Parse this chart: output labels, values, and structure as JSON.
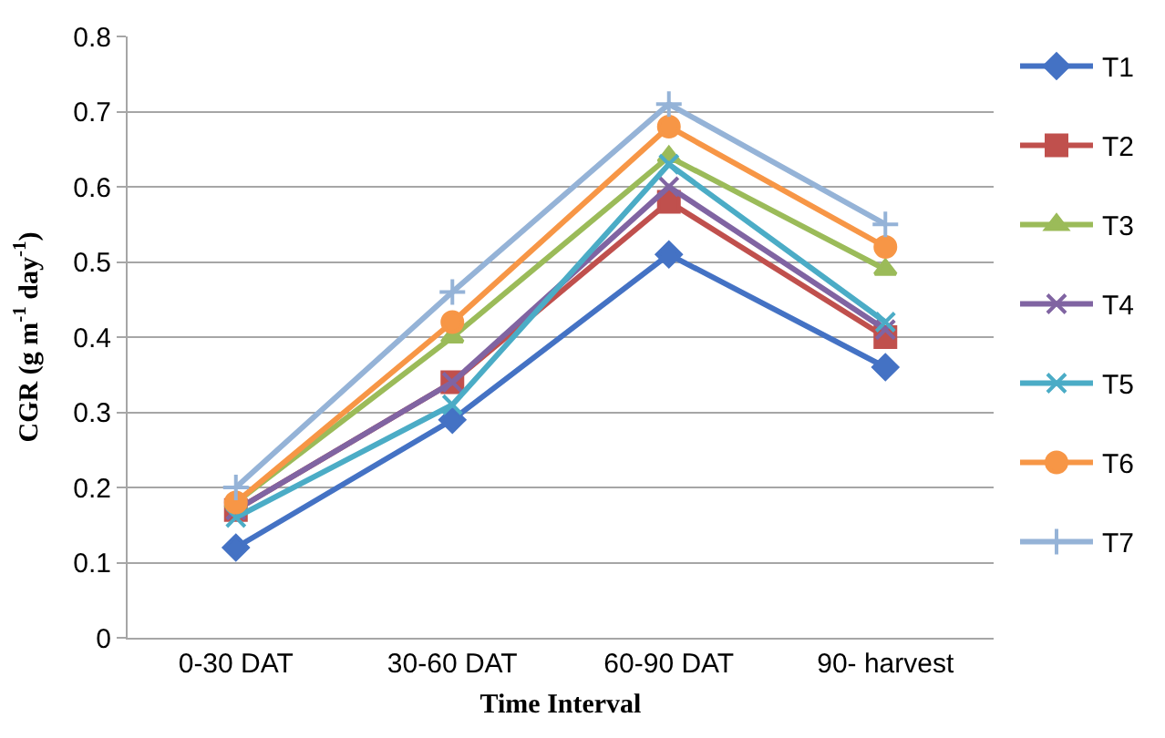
{
  "chart_data": {
    "type": "line",
    "xlabel": "Time Interval",
    "ylabel": "CGR (g m$^{-1}$ day$^{-1}$)",
    "categories": [
      "0-30 DAT",
      "30-60 DAT",
      "60-90 DAT",
      "90- harvest"
    ],
    "series": [
      {
        "name": "T1",
        "color": "#4472c4",
        "marker": "diamond",
        "values": [
          0.12,
          0.29,
          0.51,
          0.36
        ]
      },
      {
        "name": "T2",
        "color": "#c0504d",
        "marker": "square",
        "values": [
          0.17,
          0.34,
          0.58,
          0.4
        ]
      },
      {
        "name": "T3",
        "color": "#9bbb59",
        "marker": "triangle",
        "values": [
          0.18,
          0.4,
          0.64,
          0.49
        ]
      },
      {
        "name": "T4",
        "color": "#8064a2",
        "marker": "cross",
        "values": [
          0.17,
          0.34,
          0.6,
          0.41
        ]
      },
      {
        "name": "T5",
        "color": "#4bacc6",
        "marker": "cross",
        "values": [
          0.16,
          0.31,
          0.63,
          0.42
        ]
      },
      {
        "name": "T6",
        "color": "#f79646",
        "marker": "circle",
        "values": [
          0.18,
          0.42,
          0.68,
          0.52
        ]
      },
      {
        "name": "T7",
        "color": "#95b3d7",
        "marker": "plus",
        "values": [
          0.2,
          0.46,
          0.71,
          0.55
        ]
      }
    ],
    "ylim": [
      0,
      0.8
    ],
    "yticks": [
      0,
      0.1,
      0.2,
      0.3,
      0.4,
      0.5,
      0.6,
      0.7,
      0.8
    ],
    "grid": "y",
    "legend": "right",
    "line_style": "solid"
  }
}
